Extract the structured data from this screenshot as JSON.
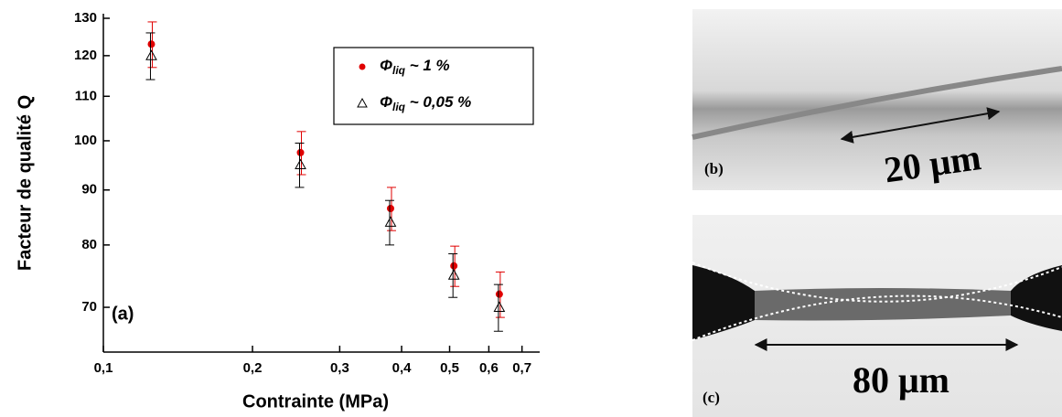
{
  "chart_data": {
    "type": "scatter",
    "x_label": "Contrainte (MPa)",
    "y_label": "Facteur de qualité Q",
    "annotation": "(a)",
    "xscale": "log",
    "yscale": "log",
    "grid": false,
    "legend": "upper right",
    "xlim": [
      0.1,
      0.76
    ],
    "ylim": [
      63.6,
      130
    ],
    "xticks": [
      {
        "value": 0.1,
        "label": "0,1"
      },
      {
        "value": 0.2,
        "label": "0,2"
      },
      {
        "value": 0.3,
        "label": "0,3"
      },
      {
        "value": 0.4,
        "label": "0,4"
      },
      {
        "value": 0.5,
        "label": "0,5"
      },
      {
        "value": 0.6,
        "label": "0,6"
      },
      {
        "value": 0.7,
        "label": "0,7"
      }
    ],
    "yticks": [
      70,
      80,
      90,
      100,
      110,
      120,
      130
    ],
    "x": [
      0.125,
      0.25,
      0.38,
      0.51,
      0.63
    ],
    "series": [
      {
        "name": "Φliq ~ 1 %",
        "color": "#e00000",
        "marker": "circle",
        "values": [
          123,
          97.5,
          86.5,
          76.5,
          72
        ],
        "errors": [
          6,
          4.5,
          4,
          3.3,
          3.5
        ]
      },
      {
        "name": "Φliq ~ 0,05 %",
        "color": "#000000",
        "marker": "triangle",
        "values": [
          120,
          95,
          84,
          75,
          70
        ],
        "errors": [
          6,
          4.5,
          4,
          3.5,
          3.5
        ]
      }
    ]
  },
  "images": [
    {
      "label": "(b)",
      "scale": "20 μm"
    },
    {
      "label": "(c)",
      "scale": "80 μm"
    }
  ]
}
